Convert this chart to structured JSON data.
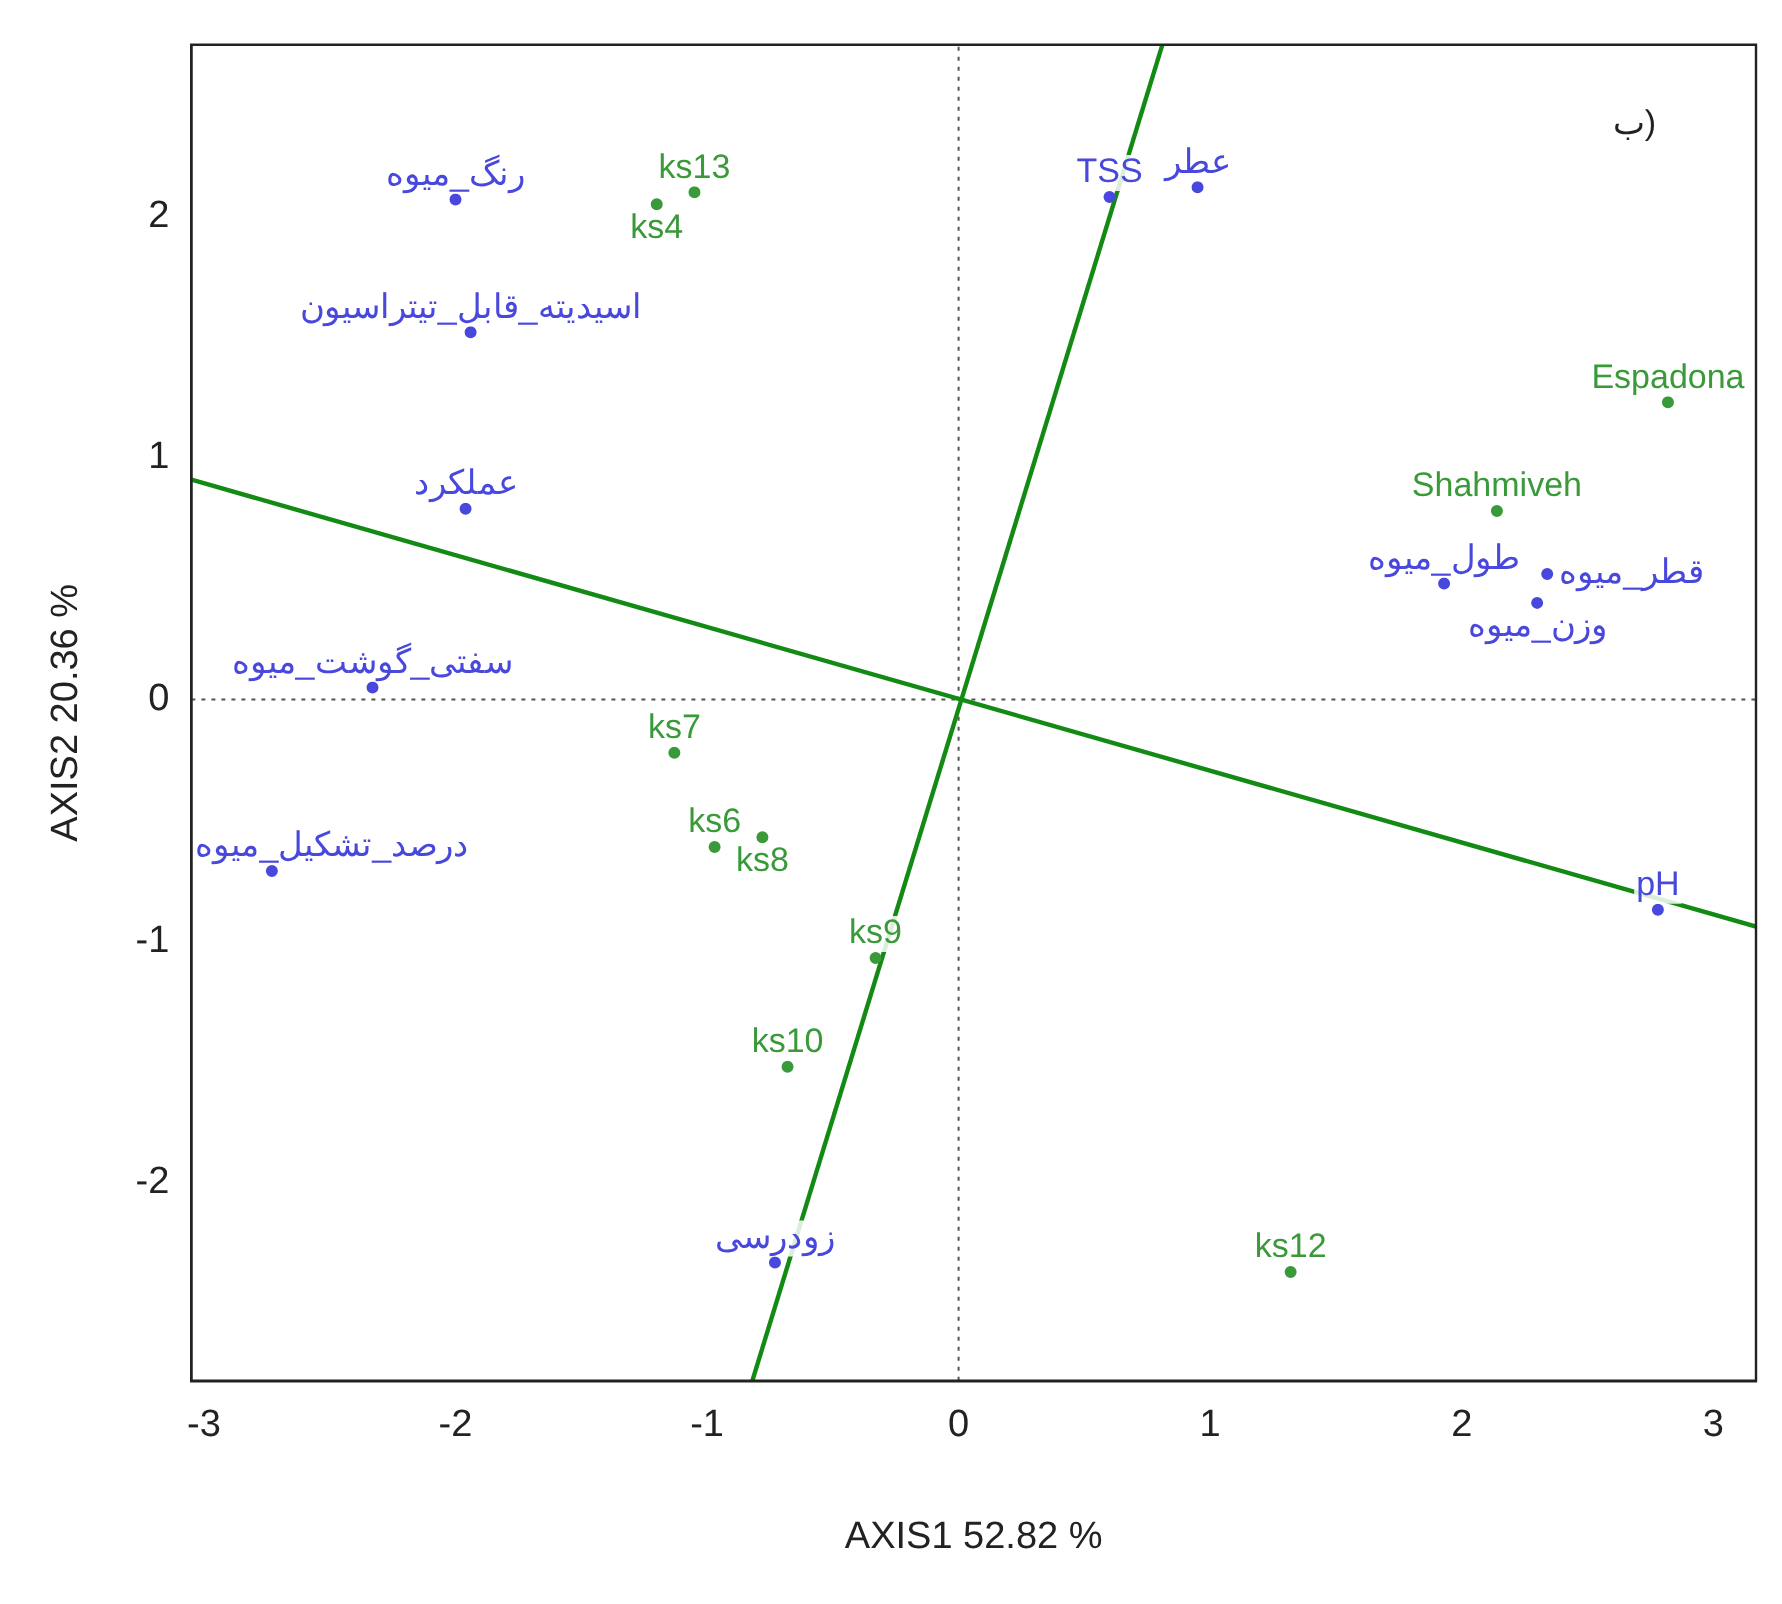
{
  "chart_data": {
    "type": "scatter",
    "xlabel": "AXIS1 52.82 %",
    "ylabel": "AXIS2 20.36 %",
    "xlim": [
      -3.05,
      3.17
    ],
    "ylim": [
      -2.82,
      2.71
    ],
    "xticks": [
      -3,
      -2,
      -1,
      0,
      1,
      2,
      3
    ],
    "yticks": [
      -2,
      -1,
      0,
      1,
      2
    ],
    "grid": false,
    "legend": false,
    "series": [
      {
        "color": "#3a9a3a",
        "marker": "circle",
        "x": [
          -1.05,
          -1.2,
          2.82,
          2.14,
          -1.13,
          -0.97,
          -0.78,
          -0.33,
          -0.68,
          1.32
        ],
        "values": [
          2.1,
          2.05,
          1.23,
          0.78,
          -0.22,
          -0.61,
          -0.57,
          -1.07,
          -1.52,
          -2.37
        ]
      },
      {
        "color": "#4848dd",
        "marker": "circle",
        "x": [
          -2.0,
          -1.94,
          -1.96,
          0.6,
          0.95,
          1.93,
          2.34,
          2.3,
          -2.33,
          -2.73,
          -0.73,
          2.78
        ],
        "values": [
          2.07,
          1.52,
          0.79,
          2.08,
          2.12,
          0.48,
          0.52,
          0.4,
          0.05,
          -0.71,
          -2.33,
          -0.87
        ]
      },
      {
        "type": "line",
        "color": "#138a13",
        "marker": "none",
        "x": [
          -3.05,
          3.17
        ],
        "values": [
          0.91,
          -0.94
        ]
      },
      {
        "type": "line",
        "color": "#138a13",
        "marker": "none",
        "x": [
          -0.82,
          0.81
        ],
        "values": [
          -2.82,
          2.71
        ]
      },
      {
        "type": "line",
        "color": "#555555",
        "marker": "none",
        "line_style": "dotted",
        "x": [
          0,
          0
        ],
        "values": [
          -2.82,
          2.71
        ]
      },
      {
        "type": "line",
        "color": "#555555",
        "marker": "none",
        "line_style": "dotted",
        "x": [
          -3.05,
          3.17
        ],
        "values": [
          0,
          0
        ]
      }
    ],
    "annotations": [
      {
        "text": "ks13",
        "x": -1.05,
        "y": 2.1
      },
      {
        "text": "ks4",
        "x": -1.2,
        "y": 2.05
      },
      {
        "text": "Espadona",
        "x": 2.82,
        "y": 1.23
      },
      {
        "text": "Shahmiveh",
        "x": 2.14,
        "y": 0.78
      },
      {
        "text": "ks7",
        "x": -1.13,
        "y": -0.22
      },
      {
        "text": "ks6",
        "x": -0.97,
        "y": -0.61
      },
      {
        "text": "ks8",
        "x": -0.78,
        "y": -0.57
      },
      {
        "text": "ks9",
        "x": -0.33,
        "y": -1.07
      },
      {
        "text": "ks10",
        "x": -0.68,
        "y": -1.52
      },
      {
        "text": "ks12",
        "x": 1.32,
        "y": -2.37
      },
      {
        "text": "رنگ_میوه",
        "x": -2.0,
        "y": 2.07
      },
      {
        "text": "اسیدیته_قابل_تیتراسیون",
        "x": -1.94,
        "y": 1.52
      },
      {
        "text": "عملکرد",
        "x": -1.96,
        "y": 0.79
      },
      {
        "text": "TSS",
        "x": 0.6,
        "y": 2.08
      },
      {
        "text": "عطر",
        "x": 0.95,
        "y": 2.12
      },
      {
        "text": "طول_میوه",
        "x": 1.93,
        "y": 0.48
      },
      {
        "text": "قطر_میوه",
        "x": 2.34,
        "y": 0.52
      },
      {
        "text": "وزن_میوه",
        "x": 2.3,
        "y": 0.4
      },
      {
        "text": "سفتی_گوشت_میوه",
        "x": -2.33,
        "y": 0.05
      },
      {
        "text": "درصد_تشکیل_میوه",
        "x": -2.73,
        "y": -0.71
      },
      {
        "text": "زودرسی",
        "x": -0.73,
        "y": -2.33
      },
      {
        "text": "pH",
        "x": 2.78,
        "y": -0.87
      },
      "ب)"
    ],
    "line_style": "solid"
  }
}
